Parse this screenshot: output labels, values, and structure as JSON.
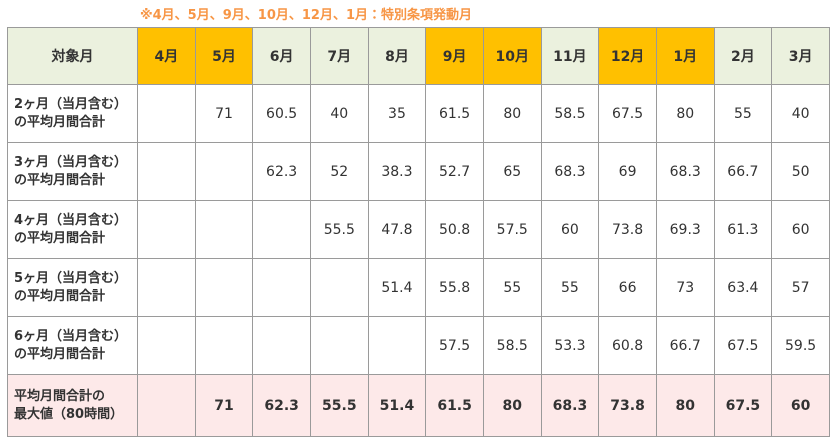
{
  "note": "※4月、5月、9月、10月、12月、1月：特別条項発動月",
  "table": {
    "corner": "対象月",
    "special_color": "#ffc000",
    "months": [
      {
        "label": "4月",
        "special": true
      },
      {
        "label": "5月",
        "special": true
      },
      {
        "label": "6月",
        "special": false
      },
      {
        "label": "7月",
        "special": false
      },
      {
        "label": "8月",
        "special": false
      },
      {
        "label": "9月",
        "special": true
      },
      {
        "label": "10月",
        "special": true
      },
      {
        "label": "11月",
        "special": false
      },
      {
        "label": "12月",
        "special": true
      },
      {
        "label": "1月",
        "special": true
      },
      {
        "label": "2月",
        "special": false
      },
      {
        "label": "3月",
        "special": false
      }
    ],
    "rows": [
      {
        "label": [
          "2ヶ月（当月含む）",
          "の平均月間合計"
        ],
        "values": [
          null,
          71,
          60.5,
          40,
          35,
          61.5,
          80,
          58.5,
          67.5,
          80,
          55,
          40
        ]
      },
      {
        "label": [
          "3ヶ月（当月含む）",
          "の平均月間合計"
        ],
        "values": [
          null,
          null,
          62.3,
          52,
          38.3,
          52.7,
          65,
          68.3,
          69,
          68.3,
          66.7,
          50
        ]
      },
      {
        "label": [
          "4ヶ月（当月含む）",
          "の平均月間合計"
        ],
        "values": [
          null,
          null,
          null,
          55.5,
          47.8,
          50.8,
          57.5,
          60,
          73.8,
          69.3,
          61.3,
          60
        ]
      },
      {
        "label": [
          "5ヶ月（当月含む）",
          "の平均月間合計"
        ],
        "values": [
          null,
          null,
          null,
          null,
          51.4,
          55.8,
          55,
          55,
          66,
          73,
          63.4,
          57
        ]
      },
      {
        "label": [
          "6ヶ月（当月含む）",
          "の平均月間合計"
        ],
        "values": [
          null,
          null,
          null,
          null,
          null,
          57.5,
          58.5,
          53.3,
          60.8,
          66.7,
          67.5,
          59.5
        ]
      }
    ],
    "max_row": {
      "label": [
        "平均月間合計の",
        "最大値（80時間）"
      ],
      "values": [
        null,
        71,
        62.3,
        55.5,
        51.4,
        61.5,
        80,
        68.3,
        73.8,
        80,
        67.5,
        60
      ]
    }
  }
}
